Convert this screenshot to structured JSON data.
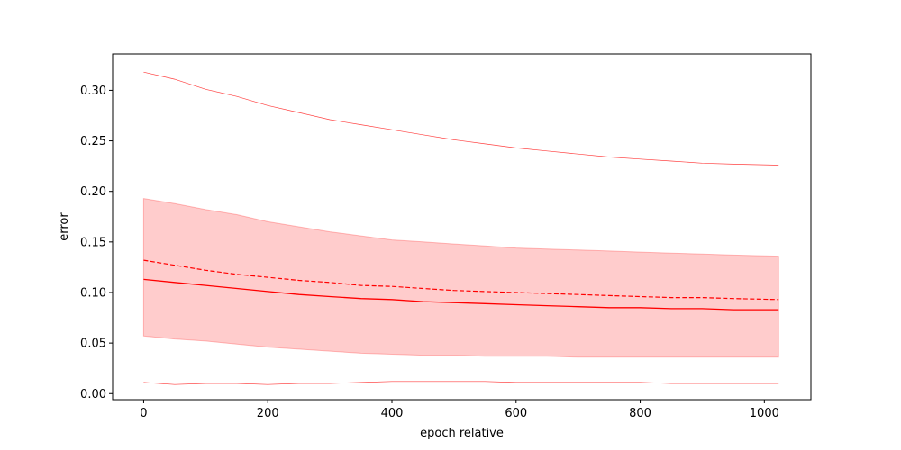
{
  "chart_data": {
    "type": "line",
    "title": "",
    "xlabel": "epoch relative",
    "ylabel": "error",
    "xlim": [
      -50,
      1075
    ],
    "ylim": [
      -0.006,
      0.336
    ],
    "xticks": [
      0,
      200,
      400,
      600,
      800,
      1000
    ],
    "yticks": [
      0.0,
      0.05,
      0.1,
      0.15,
      0.2,
      0.25,
      0.3
    ],
    "grid": false,
    "legend": "none",
    "color": "#ff0000",
    "x": [
      0,
      50,
      100,
      150,
      200,
      250,
      300,
      350,
      400,
      450,
      500,
      550,
      600,
      650,
      700,
      750,
      800,
      850,
      900,
      950,
      1023
    ],
    "bands": [
      {
        "kind": "shaded-interquartile",
        "upper": [
          0.193,
          0.188,
          0.182,
          0.177,
          0.17,
          0.165,
          0.16,
          0.156,
          0.152,
          0.15,
          0.148,
          0.146,
          0.144,
          0.143,
          0.142,
          0.141,
          0.14,
          0.139,
          0.138,
          0.137,
          0.136
        ],
        "lower": [
          0.057,
          0.054,
          0.052,
          0.049,
          0.046,
          0.044,
          0.042,
          0.04,
          0.039,
          0.038,
          0.038,
          0.037,
          0.037,
          0.037,
          0.036,
          0.036,
          0.036,
          0.036,
          0.036,
          0.036,
          0.036
        ]
      }
    ],
    "series": [
      {
        "style": "solid",
        "role": "median",
        "values": [
          0.113,
          0.11,
          0.107,
          0.104,
          0.101,
          0.098,
          0.096,
          0.094,
          0.093,
          0.091,
          0.09,
          0.089,
          0.088,
          0.087,
          0.086,
          0.085,
          0.085,
          0.084,
          0.084,
          0.083,
          0.083
        ]
      },
      {
        "style": "dashed",
        "role": "mean",
        "values": [
          0.132,
          0.127,
          0.122,
          0.118,
          0.115,
          0.112,
          0.11,
          0.107,
          0.106,
          0.104,
          0.102,
          0.101,
          0.1,
          0.099,
          0.098,
          0.097,
          0.096,
          0.095,
          0.095,
          0.094,
          0.093
        ]
      },
      {
        "style": "thin",
        "role": "max",
        "values": [
          0.318,
          0.311,
          0.301,
          0.294,
          0.285,
          0.278,
          0.271,
          0.266,
          0.261,
          0.256,
          0.251,
          0.247,
          0.243,
          0.24,
          0.237,
          0.234,
          0.232,
          0.23,
          0.228,
          0.227,
          0.226
        ]
      },
      {
        "style": "thin",
        "role": "min",
        "values": [
          0.011,
          0.009,
          0.01,
          0.01,
          0.009,
          0.01,
          0.01,
          0.011,
          0.012,
          0.012,
          0.012,
          0.012,
          0.011,
          0.011,
          0.011,
          0.011,
          0.011,
          0.01,
          0.01,
          0.01,
          0.01
        ]
      }
    ]
  }
}
